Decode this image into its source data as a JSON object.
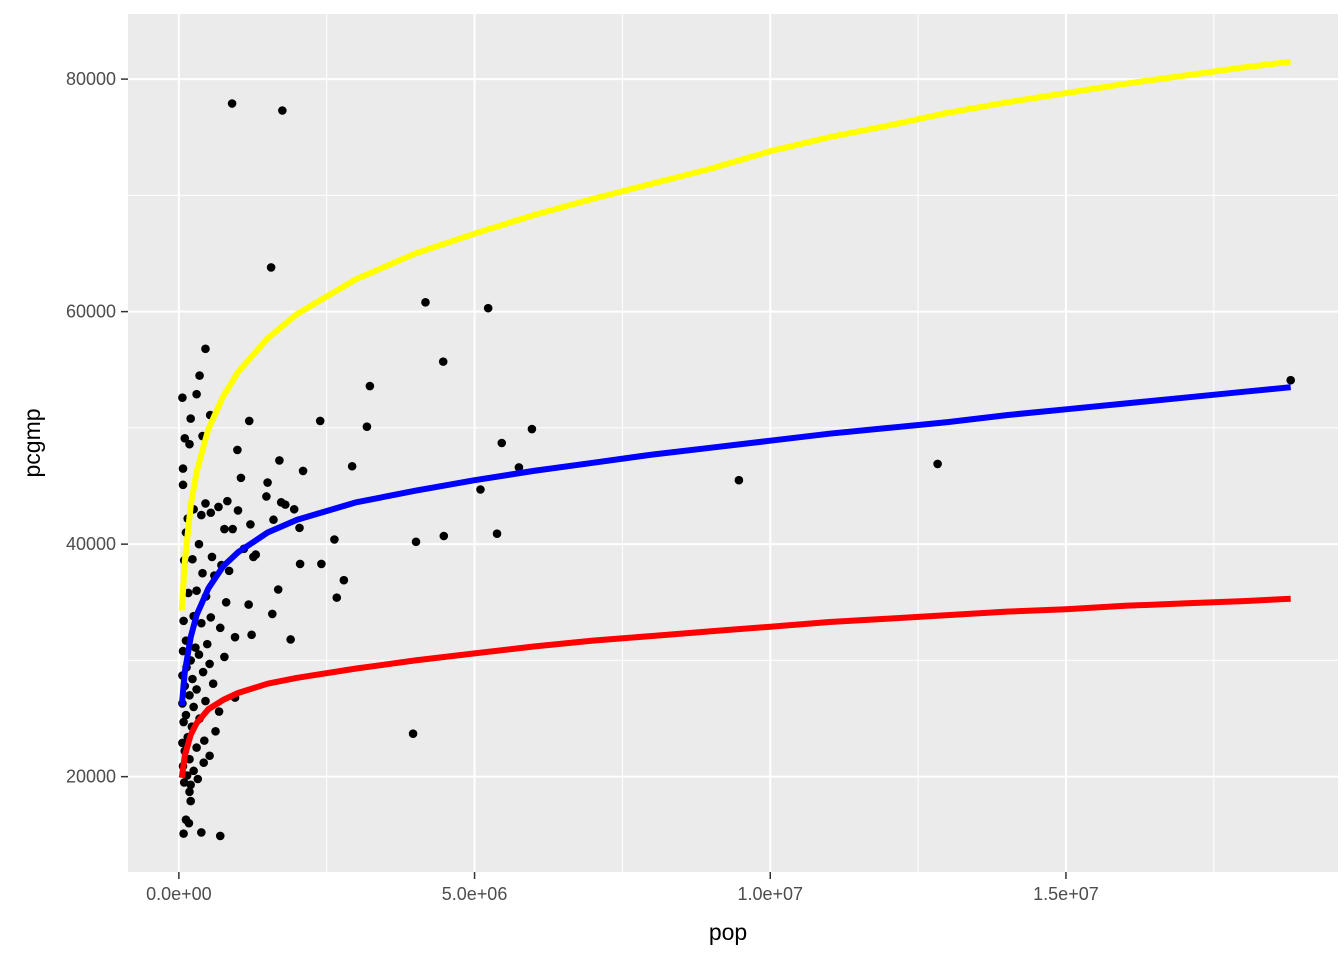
{
  "chart_data": {
    "type": "scatter",
    "title": "",
    "xlabel": "pop",
    "ylabel": "pcgmp",
    "xlim": [
      -860000,
      19600000
    ],
    "ylim": [
      11800,
      85600
    ],
    "grid": true,
    "legend": "none",
    "x_ticks": [
      {
        "value": 0,
        "label": "0.0e+00"
      },
      {
        "value": 5000000,
        "label": "5.0e+06"
      },
      {
        "value": 10000000,
        "label": "1.0e+07"
      },
      {
        "value": 15000000,
        "label": "1.5e+07"
      }
    ],
    "y_ticks": [
      {
        "value": 20000,
        "label": "20000"
      },
      {
        "value": 40000,
        "label": "40000"
      },
      {
        "value": 60000,
        "label": "60000"
      },
      {
        "value": 80000,
        "label": "80000"
      }
    ],
    "colors": {
      "panel_background": "#EBEBEB",
      "grid": "#FFFFFF",
      "points": "#000000",
      "tick_text": "#4D4D4D",
      "axis_title": "#000000"
    },
    "series": [
      {
        "type": "scatter",
        "color": "#000000",
        "points": [
          [
            900000,
            77900
          ],
          [
            1750000,
            77300
          ],
          [
            1560000,
            63800
          ],
          [
            4170000,
            60800
          ],
          [
            5230000,
            60300
          ],
          [
            4470000,
            55700
          ],
          [
            450000,
            56800
          ],
          [
            3230000,
            53600
          ],
          [
            350000,
            54500
          ],
          [
            60000,
            52600
          ],
          [
            300000,
            52900
          ],
          [
            530000,
            51100
          ],
          [
            200000,
            50800
          ],
          [
            1190000,
            50600
          ],
          [
            2390000,
            50600
          ],
          [
            3180000,
            50100
          ],
          [
            5970000,
            49900
          ],
          [
            100000,
            49100
          ],
          [
            400000,
            49300
          ],
          [
            180000,
            48600
          ],
          [
            5460000,
            48700
          ],
          [
            990000,
            48100
          ],
          [
            1700000,
            47200
          ],
          [
            2930000,
            46700
          ],
          [
            5750000,
            46600
          ],
          [
            70000,
            46500
          ],
          [
            2100000,
            46300
          ],
          [
            1050000,
            45700
          ],
          [
            9470000,
            45500
          ],
          [
            12830000,
            46900
          ],
          [
            70000,
            45100
          ],
          [
            1500000,
            45300
          ],
          [
            5100000,
            44700
          ],
          [
            1480000,
            44100
          ],
          [
            1730000,
            43600
          ],
          [
            1800000,
            43400
          ],
          [
            820000,
            43700
          ],
          [
            450000,
            43500
          ],
          [
            1950000,
            43000
          ],
          [
            670000,
            43200
          ],
          [
            250000,
            43000
          ],
          [
            540000,
            42700
          ],
          [
            380000,
            42500
          ],
          [
            1000000,
            42900
          ],
          [
            150000,
            42200
          ],
          [
            1600000,
            42100
          ],
          [
            1210000,
            41700
          ],
          [
            2040000,
            41400
          ],
          [
            770000,
            41300
          ],
          [
            910000,
            41300
          ],
          [
            120000,
            41000
          ],
          [
            4480000,
            40700
          ],
          [
            5380000,
            40900
          ],
          [
            4010000,
            40200
          ],
          [
            2630000,
            40400
          ],
          [
            340000,
            40000
          ],
          [
            1100000,
            39600
          ],
          [
            1300000,
            39100
          ],
          [
            1260000,
            38900
          ],
          [
            2050000,
            38300
          ],
          [
            2410000,
            38300
          ],
          [
            560000,
            38900
          ],
          [
            230000,
            38700
          ],
          [
            90000,
            38600
          ],
          [
            720000,
            38200
          ],
          [
            850000,
            37700
          ],
          [
            400000,
            37500
          ],
          [
            600000,
            37300
          ],
          [
            2790000,
            36900
          ],
          [
            1680000,
            36100
          ],
          [
            300000,
            36000
          ],
          [
            160000,
            35800
          ],
          [
            460000,
            35500
          ],
          [
            2670000,
            35400
          ],
          [
            800000,
            35000
          ],
          [
            1180000,
            34800
          ],
          [
            1580000,
            34000
          ],
          [
            250000,
            33800
          ],
          [
            540000,
            33700
          ],
          [
            80000,
            33400
          ],
          [
            380000,
            33200
          ],
          [
            700000,
            32800
          ],
          [
            1230000,
            32200
          ],
          [
            950000,
            32000
          ],
          [
            1890000,
            31800
          ],
          [
            120000,
            31700
          ],
          [
            480000,
            31400
          ],
          [
            280000,
            31100
          ],
          [
            70000,
            30800
          ],
          [
            340000,
            30500
          ],
          [
            770000,
            30300
          ],
          [
            200000,
            30000
          ],
          [
            520000,
            29700
          ],
          [
            130000,
            29400
          ],
          [
            410000,
            29000
          ],
          [
            60000,
            28700
          ],
          [
            230000,
            28400
          ],
          [
            580000,
            28000
          ],
          [
            100000,
            27800
          ],
          [
            300000,
            27500
          ],
          [
            950000,
            26800
          ],
          [
            180000,
            27000
          ],
          [
            450000,
            26500
          ],
          [
            60000,
            26300
          ],
          [
            250000,
            26000
          ],
          [
            680000,
            25600
          ],
          [
            120000,
            25300
          ],
          [
            350000,
            25000
          ],
          [
            80000,
            24700
          ],
          [
            220000,
            24300
          ],
          [
            620000,
            23900
          ],
          [
            3960000,
            23700
          ],
          [
            150000,
            23400
          ],
          [
            430000,
            23100
          ],
          [
            60000,
            22900
          ],
          [
            300000,
            22500
          ],
          [
            100000,
            22200
          ],
          [
            520000,
            21800
          ],
          [
            180000,
            21500
          ],
          [
            420000,
            21200
          ],
          [
            70000,
            20900
          ],
          [
            250000,
            20500
          ],
          [
            140000,
            20100
          ],
          [
            320000,
            19800
          ],
          [
            90000,
            19500
          ],
          [
            200000,
            19300
          ],
          [
            180000,
            18700
          ],
          [
            200000,
            17900
          ],
          [
            120000,
            16300
          ],
          [
            170000,
            16000
          ],
          [
            80000,
            15100
          ],
          [
            380000,
            15200
          ],
          [
            700000,
            14900
          ],
          [
            18800000,
            54100
          ]
        ]
      },
      {
        "type": "line",
        "color": "#FFFF00",
        "points": [
          [
            50000,
            34300
          ],
          [
            100000,
            38500
          ],
          [
            200000,
            43300
          ],
          [
            300000,
            46200
          ],
          [
            500000,
            49900
          ],
          [
            750000,
            52700
          ],
          [
            1000000,
            54800
          ],
          [
            1500000,
            57700
          ],
          [
            2000000,
            59800
          ],
          [
            3000000,
            62800
          ],
          [
            4000000,
            65000
          ],
          [
            5000000,
            66700
          ],
          [
            6000000,
            68300
          ],
          [
            7000000,
            69700
          ],
          [
            8000000,
            71000
          ],
          [
            9000000,
            72300
          ],
          [
            10000000,
            73800
          ],
          [
            11000000,
            75000
          ],
          [
            12000000,
            76000
          ],
          [
            13000000,
            77100
          ],
          [
            14000000,
            78000
          ],
          [
            15000000,
            78800
          ],
          [
            16000000,
            79600
          ],
          [
            17000000,
            80300
          ],
          [
            18000000,
            81000
          ],
          [
            18800000,
            81500
          ]
        ]
      },
      {
        "type": "line",
        "color": "#0000FF",
        "points": [
          [
            50000,
            26100
          ],
          [
            100000,
            29000
          ],
          [
            200000,
            32000
          ],
          [
            300000,
            33900
          ],
          [
            500000,
            36200
          ],
          [
            750000,
            38100
          ],
          [
            1000000,
            39300
          ],
          [
            1500000,
            41000
          ],
          [
            2000000,
            42100
          ],
          [
            3000000,
            43600
          ],
          [
            4000000,
            44600
          ],
          [
            5000000,
            45500
          ],
          [
            6000000,
            46300
          ],
          [
            7000000,
            47000
          ],
          [
            8000000,
            47700
          ],
          [
            9000000,
            48300
          ],
          [
            10000000,
            48900
          ],
          [
            11000000,
            49500
          ],
          [
            12000000,
            50000
          ],
          [
            13000000,
            50500
          ],
          [
            14000000,
            51100
          ],
          [
            15000000,
            51600
          ],
          [
            16000000,
            52100
          ],
          [
            17000000,
            52600
          ],
          [
            18000000,
            53100
          ],
          [
            18800000,
            53500
          ]
        ]
      },
      {
        "type": "line",
        "color": "#FF0000",
        "points": [
          [
            50000,
            19900
          ],
          [
            100000,
            21800
          ],
          [
            200000,
            23600
          ],
          [
            300000,
            24600
          ],
          [
            500000,
            25800
          ],
          [
            750000,
            26600
          ],
          [
            1000000,
            27200
          ],
          [
            1500000,
            28000
          ],
          [
            2000000,
            28500
          ],
          [
            3000000,
            29300
          ],
          [
            4000000,
            30000
          ],
          [
            5000000,
            30600
          ],
          [
            6000000,
            31200
          ],
          [
            7000000,
            31700
          ],
          [
            8000000,
            32100
          ],
          [
            9000000,
            32500
          ],
          [
            10000000,
            32900
          ],
          [
            11000000,
            33300
          ],
          [
            12000000,
            33600
          ],
          [
            13000000,
            33900
          ],
          [
            14000000,
            34200
          ],
          [
            15000000,
            34400
          ],
          [
            16000000,
            34700
          ],
          [
            17000000,
            34900
          ],
          [
            18000000,
            35100
          ],
          [
            18800000,
            35300
          ]
        ]
      }
    ]
  }
}
